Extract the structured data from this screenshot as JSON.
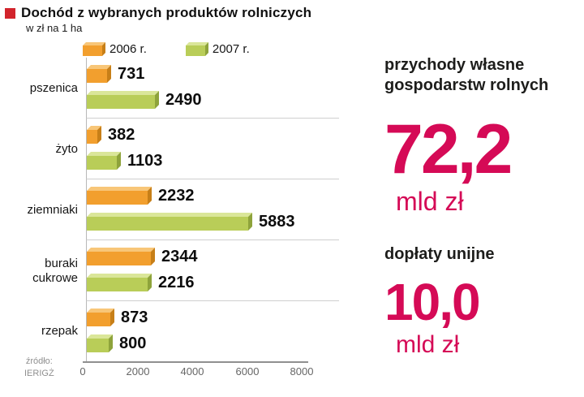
{
  "header": {
    "title": "Dochód  z wybranych produktów rolniczych",
    "subtitle": "w zł na 1 ha"
  },
  "chart_data": {
    "type": "bar",
    "orientation": "horizontal",
    "title": "Dochód z wybranych produktów rolniczych",
    "unit_note": "w zł na 1 ha",
    "categories": [
      "pszenica",
      "żyto",
      "ziemniaki",
      "buraki cukrowe",
      "rzepak"
    ],
    "series": [
      {
        "name": "2006 r.",
        "color": "#f29f2e",
        "values": [
          731,
          382,
          2232,
          2344,
          873
        ]
      },
      {
        "name": "2007 r.",
        "color": "#b9cd58",
        "values": [
          2490,
          1103,
          5883,
          2216,
          800
        ]
      }
    ],
    "xlim": [
      0,
      8000
    ],
    "x_ticks": [
      0,
      2000,
      4000,
      6000,
      8000
    ],
    "legend_position": "top",
    "grid": "category-separators",
    "source": {
      "label": "źródło:",
      "name": "IERIGŻ"
    }
  },
  "side_panel": {
    "revenue": {
      "label": "przychody własne gospodarstw rolnych",
      "value": "72,2",
      "unit": "mld zł"
    },
    "subsidies": {
      "label": "dopłaty unijne",
      "value": "10,0",
      "unit": "mld zł"
    }
  },
  "colors": {
    "accent": "#d50a56",
    "title_bullet": "#d2242c",
    "bar_2006_front": "#f29f2e",
    "bar_2007_front": "#b9cd58"
  }
}
